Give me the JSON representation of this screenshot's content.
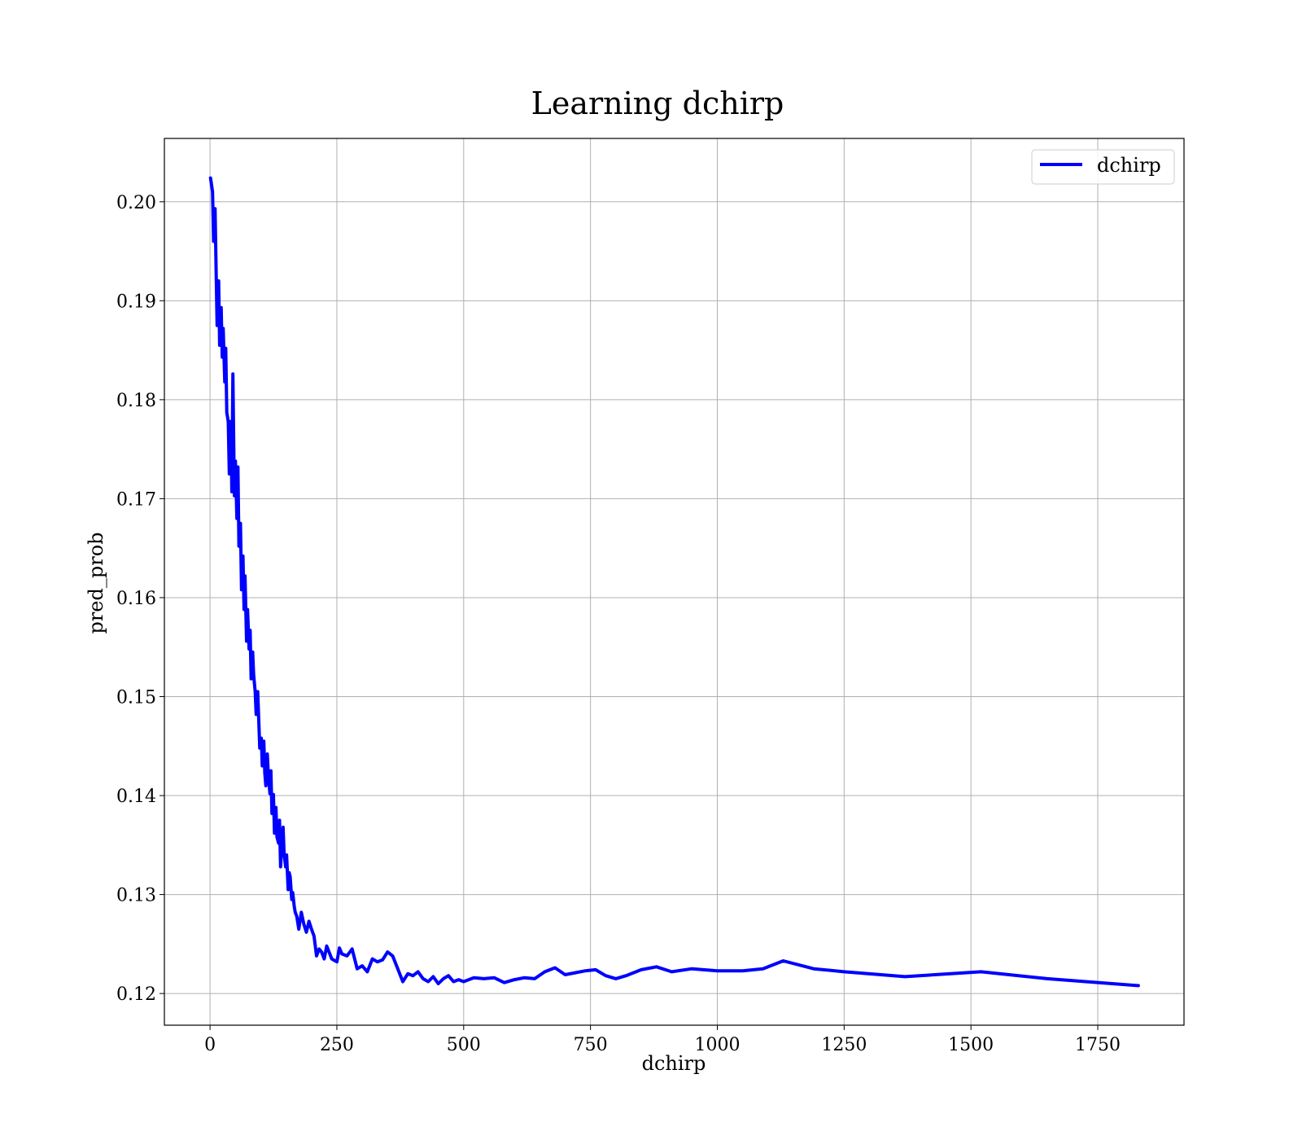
{
  "chart_data": {
    "type": "line",
    "title": "Learning dchirp",
    "xlabel": "dchirp",
    "ylabel": "pred_prob",
    "xlim": [
      -90,
      1920
    ],
    "ylim": [
      0.1168,
      0.2064
    ],
    "xticks": [
      0,
      250,
      500,
      750,
      1000,
      1250,
      1500,
      1750
    ],
    "yticks": [
      0.12,
      0.13,
      0.14,
      0.15,
      0.16,
      0.17,
      0.18,
      0.19,
      0.2
    ],
    "xtick_labels": [
      "0",
      "250",
      "500",
      "750",
      "1000",
      "1250",
      "1500",
      "1750"
    ],
    "ytick_labels": [
      "0.12",
      "0.13",
      "0.14",
      "0.15",
      "0.16",
      "0.17",
      "0.18",
      "0.19",
      "0.20"
    ],
    "grid": true,
    "legend_position": "top-right",
    "colors": {
      "series": "#0000ff",
      "grid": "#b0b0b0"
    },
    "series": [
      {
        "name": "dchirp",
        "x": [
          1,
          5,
          7,
          10,
          12,
          14,
          17,
          19,
          22,
          24,
          26,
          29,
          31,
          33,
          36,
          38,
          41,
          43,
          45,
          48,
          50,
          53,
          55,
          57,
          60,
          62,
          65,
          67,
          69,
          72,
          74,
          77,
          79,
          81,
          84,
          86,
          89,
          91,
          94,
          96,
          98,
          101,
          103,
          106,
          108,
          110,
          113,
          115,
          118,
          120,
          122,
          125,
          127,
          130,
          132,
          135,
          137,
          139,
          142,
          144,
          146,
          149,
          151,
          154,
          156,
          158,
          161,
          163,
          166,
          168,
          171,
          175,
          180,
          185,
          190,
          195,
          200,
          205,
          210,
          215,
          220,
          225,
          230,
          240,
          250,
          255,
          260,
          270,
          280,
          290,
          300,
          310,
          320,
          330,
          340,
          350,
          360,
          370,
          380,
          390,
          400,
          410,
          420,
          430,
          440,
          450,
          460,
          470,
          480,
          490,
          500,
          520,
          540,
          560,
          580,
          600,
          620,
          640,
          660,
          680,
          700,
          720,
          740,
          760,
          780,
          800,
          820,
          850,
          880,
          910,
          950,
          1000,
          1050,
          1090,
          1130,
          1190,
          1250,
          1370,
          1520,
          1650,
          1830
        ],
        "y": [
          0.2024,
          0.201,
          0.196,
          0.1993,
          0.193,
          0.1875,
          0.192,
          0.1855,
          0.1893,
          0.1843,
          0.1872,
          0.1818,
          0.1852,
          0.1787,
          0.1778,
          0.1725,
          0.1778,
          0.1707,
          0.1826,
          0.1703,
          0.1738,
          0.168,
          0.1732,
          0.1652,
          0.1675,
          0.1608,
          0.1642,
          0.1588,
          0.1622,
          0.1556,
          0.1588,
          0.1548,
          0.1567,
          0.1518,
          0.1545,
          0.1522,
          0.1505,
          0.1482,
          0.1505,
          0.1478,
          0.1448,
          0.1458,
          0.143,
          0.1455,
          0.1423,
          0.141,
          0.1442,
          0.142,
          0.1402,
          0.1425,
          0.1382,
          0.1401,
          0.1362,
          0.1388,
          0.1358,
          0.1352,
          0.1375,
          0.1328,
          0.1352,
          0.1368,
          0.1342,
          0.1328,
          0.134,
          0.1305,
          0.1322,
          0.1318,
          0.1295,
          0.1302,
          0.1288,
          0.1282,
          0.1278,
          0.1265,
          0.1282,
          0.127,
          0.1262,
          0.1273,
          0.1265,
          0.1258,
          0.1238,
          0.1245,
          0.1242,
          0.1235,
          0.1248,
          0.1235,
          0.1232,
          0.1246,
          0.124,
          0.1238,
          0.1245,
          0.1225,
          0.1228,
          0.1222,
          0.1235,
          0.1232,
          0.1234,
          0.1242,
          0.1238,
          0.1225,
          0.1212,
          0.122,
          0.1218,
          0.1222,
          0.1215,
          0.1212,
          0.1217,
          0.121,
          0.1215,
          0.1218,
          0.1212,
          0.1214,
          0.1212,
          0.1216,
          0.1215,
          0.1216,
          0.1211,
          0.1214,
          0.1216,
          0.1215,
          0.1222,
          0.1226,
          0.1219,
          0.1221,
          0.1223,
          0.1224,
          0.1218,
          0.1215,
          0.1218,
          0.1224,
          0.1227,
          0.1222,
          0.1225,
          0.1223,
          0.1223,
          0.1225,
          0.1233,
          0.1225,
          0.1222,
          0.1217,
          0.1222,
          0.1215,
          0.1208
        ]
      }
    ]
  }
}
